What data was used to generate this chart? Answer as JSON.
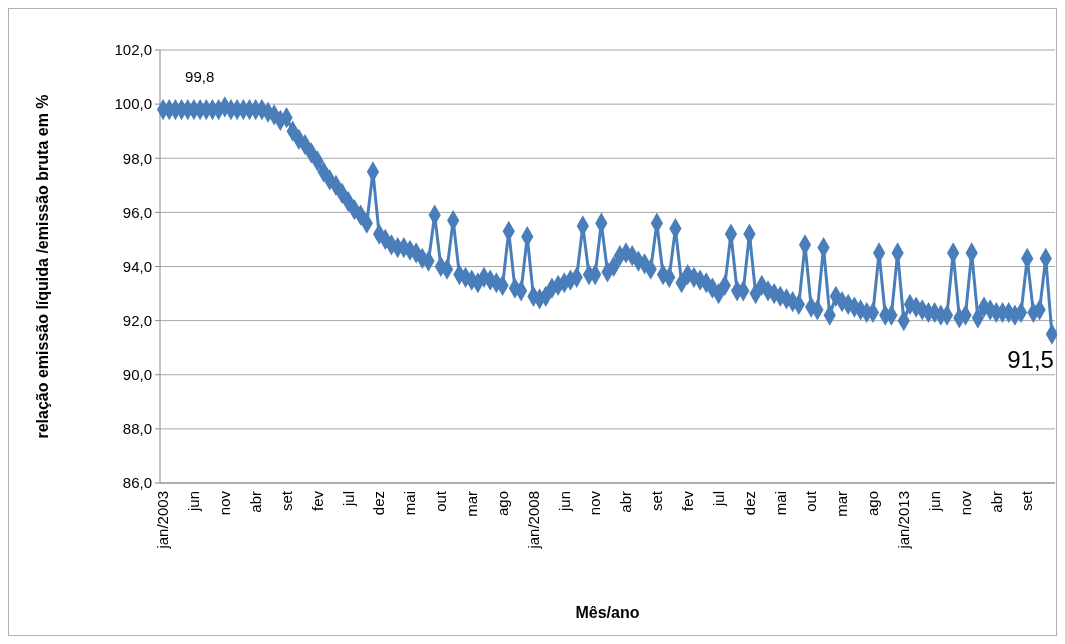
{
  "chart_data": {
    "type": "line",
    "xlabel": "Mês/ano",
    "ylabel": "relação emissão líquida /emissão bruta em %",
    "categories": [
      "jan/2003",
      null,
      null,
      null,
      null,
      "jun",
      null,
      null,
      null,
      null,
      "nov",
      null,
      null,
      null,
      null,
      "abr",
      null,
      null,
      null,
      null,
      "set",
      null,
      null,
      null,
      null,
      "fev",
      null,
      null,
      null,
      null,
      "jul",
      null,
      null,
      null,
      null,
      "dez",
      null,
      null,
      null,
      null,
      "mai",
      null,
      null,
      null,
      null,
      "out",
      null,
      null,
      null,
      null,
      "mar",
      null,
      null,
      null,
      null,
      "ago",
      null,
      null,
      null,
      null,
      "jan/2008",
      null,
      null,
      null,
      null,
      "jun",
      null,
      null,
      null,
      null,
      "nov",
      null,
      null,
      null,
      null,
      "abr",
      null,
      null,
      null,
      null,
      "set",
      null,
      null,
      null,
      null,
      "fev",
      null,
      null,
      null,
      null,
      "jul",
      null,
      null,
      null,
      null,
      "dez",
      null,
      null,
      null,
      null,
      "mai",
      null,
      null,
      null,
      null,
      "out",
      null,
      null,
      null,
      null,
      "mar",
      null,
      null,
      null,
      null,
      "ago",
      null,
      null,
      null,
      null,
      "jan/2013",
      null,
      null,
      null,
      null,
      "jun",
      null,
      null,
      null,
      null,
      "nov",
      null,
      null,
      null,
      null,
      "abr",
      null,
      null,
      null,
      null,
      "set",
      null,
      null,
      null,
      null
    ],
    "series": [
      {
        "color": "#4a7ebb",
        "values": [
          99.8,
          99.8,
          99.8,
          99.8,
          99.8,
          99.8,
          99.8,
          99.8,
          99.8,
          99.8,
          99.9,
          99.8,
          99.8,
          99.8,
          99.8,
          99.8,
          99.8,
          99.7,
          99.6,
          99.4,
          99.5,
          99.0,
          98.7,
          98.5,
          98.2,
          97.9,
          97.5,
          97.2,
          97.0,
          96.7,
          96.4,
          96.1,
          95.9,
          95.6,
          97.5,
          95.2,
          95.0,
          94.8,
          94.7,
          94.7,
          94.6,
          94.5,
          94.3,
          94.2,
          95.9,
          94.0,
          93.9,
          95.7,
          93.7,
          93.6,
          93.5,
          93.4,
          93.6,
          93.5,
          93.4,
          93.3,
          95.3,
          93.2,
          93.1,
          95.1,
          92.9,
          92.8,
          92.9,
          93.2,
          93.3,
          93.4,
          93.5,
          93.6,
          95.5,
          93.7,
          93.7,
          95.6,
          93.8,
          94.0,
          94.4,
          94.5,
          94.4,
          94.2,
          94.1,
          93.9,
          95.6,
          93.7,
          93.6,
          95.4,
          93.4,
          93.7,
          93.6,
          93.5,
          93.4,
          93.2,
          93.0,
          93.3,
          95.2,
          93.1,
          93.1,
          95.2,
          93.0,
          93.3,
          93.1,
          93.0,
          92.9,
          92.8,
          92.7,
          92.6,
          94.8,
          92.5,
          92.4,
          94.7,
          92.2,
          92.9,
          92.7,
          92.6,
          92.5,
          92.4,
          92.3,
          92.3,
          94.5,
          92.2,
          92.2,
          94.5,
          92.0,
          92.6,
          92.5,
          92.4,
          92.3,
          92.3,
          92.2,
          92.2,
          94.5,
          92.1,
          92.2,
          94.5,
          92.1,
          92.5,
          92.4,
          92.3,
          92.3,
          92.3,
          92.2,
          92.3,
          94.3,
          92.3,
          92.4,
          94.3,
          91.5
        ],
        "value_labels": [
          "99,8",
          null,
          null,
          null,
          null,
          null,
          null,
          null,
          null,
          null,
          null,
          null,
          null,
          null,
          null,
          null,
          null,
          null,
          null,
          null,
          null,
          null,
          null,
          null,
          null,
          null,
          null,
          null,
          null,
          null,
          null,
          null,
          null,
          null,
          null,
          null,
          null,
          null,
          null,
          null,
          null,
          null,
          null,
          null,
          null,
          null,
          null,
          null,
          null,
          null,
          null,
          null,
          null,
          null,
          null,
          null,
          null,
          null,
          null,
          null,
          null,
          null,
          null,
          null,
          null,
          null,
          null,
          null,
          null,
          null,
          null,
          null,
          null,
          null,
          null,
          null,
          null,
          null,
          null,
          null,
          null,
          null,
          null,
          null,
          null,
          null,
          null,
          null,
          null,
          null,
          null,
          null,
          null,
          null,
          null,
          null,
          null,
          null,
          null,
          null,
          null,
          null,
          null,
          null,
          null,
          null,
          null,
          null,
          null,
          null,
          null,
          null,
          null,
          null,
          null,
          null,
          null,
          null,
          null,
          null,
          null,
          null,
          null,
          null,
          null,
          null,
          null,
          null,
          null,
          null,
          null,
          null,
          null,
          null,
          null,
          null,
          null,
          null,
          null,
          null,
          null,
          null,
          null,
          null,
          "91,5"
        ]
      }
    ],
    "ylim": [
      86,
      102
    ],
    "yticks": [
      {
        "value": 86,
        "label": "86,0"
      },
      {
        "value": 88,
        "label": "88,0"
      },
      {
        "value": 90,
        "label": "90,0"
      },
      {
        "value": 92,
        "label": "92,0"
      },
      {
        "value": 94,
        "label": "94,0"
      },
      {
        "value": 96,
        "label": "96,0"
      },
      {
        "value": 98,
        "label": "98,0"
      },
      {
        "value": 100,
        "label": "100,0"
      },
      {
        "value": 102,
        "label": "102,0"
      }
    ],
    "grid": "y",
    "marker": "diamond",
    "line_style": "solid"
  }
}
